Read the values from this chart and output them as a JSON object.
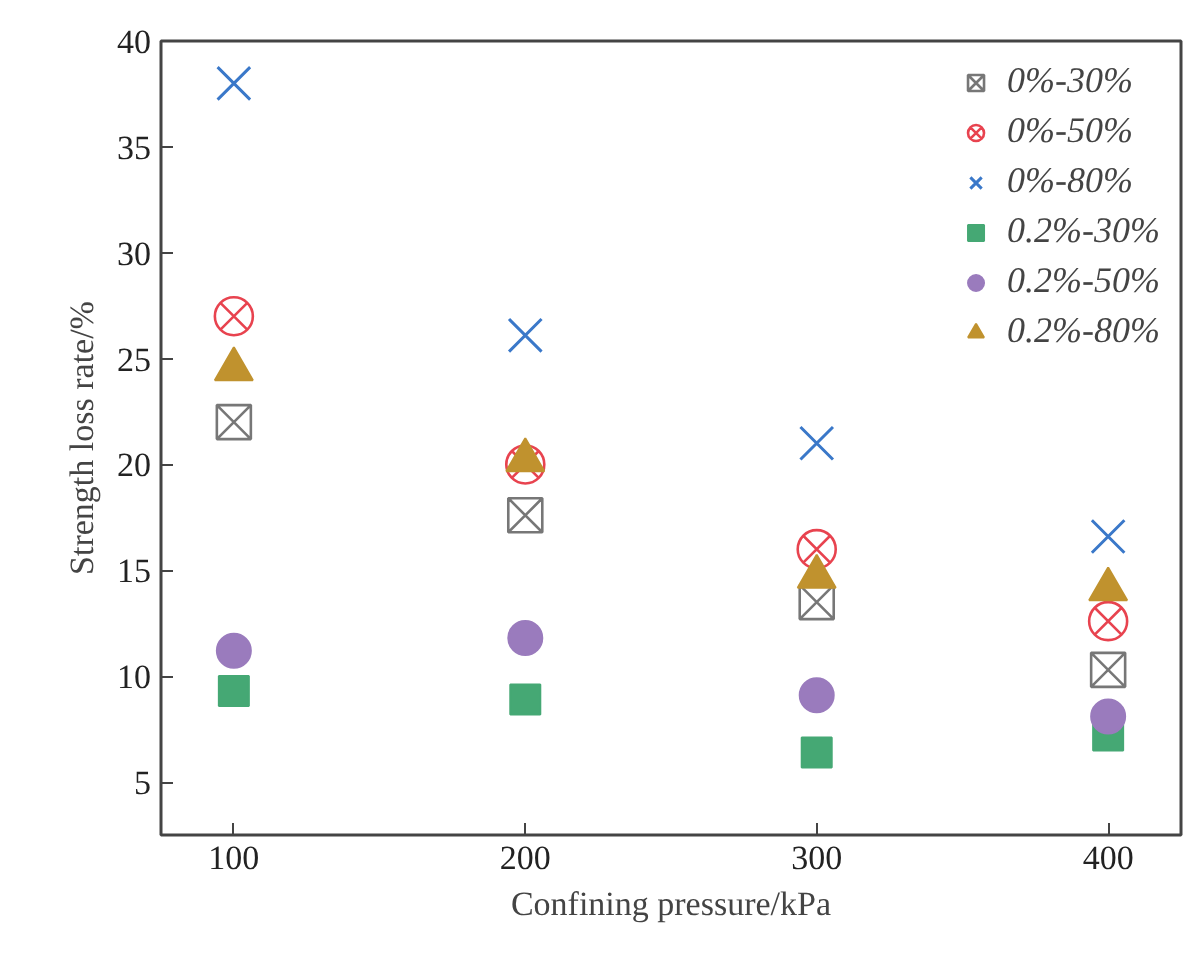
{
  "chart_data": {
    "type": "scatter",
    "xlabel": "Confining pressure/kPa",
    "ylabel": "Strength loss rate/%",
    "x": [
      100,
      200,
      300,
      400
    ],
    "xlim": [
      75,
      425
    ],
    "xticks": [
      100,
      200,
      300,
      400
    ],
    "ylim": [
      2.5,
      40
    ],
    "yticks": [
      5,
      10,
      15,
      20,
      25,
      30,
      35,
      40
    ],
    "grid": false,
    "legend": "top right",
    "series": [
      {
        "name": "0%-30%",
        "color": "#777777",
        "marker": "cross",
        "values": [
          22,
          17.6,
          13.5,
          10.3
        ]
      },
      {
        "name": "0%-50%",
        "color": "#e8434f",
        "marker": "cross",
        "values": [
          27,
          20,
          16,
          12.6
        ]
      },
      {
        "name": "0%-80%",
        "color": "#3a78c9",
        "marker": "cross",
        "values": [
          38,
          26.1,
          21,
          16.6
        ]
      },
      {
        "name": "0.2%-30%",
        "color": "#45a874",
        "marker": "square",
        "values": [
          9.3,
          8.9,
          6.4,
          7.2
        ]
      },
      {
        "name": "0.2%-50%",
        "color": "#9a7bbd",
        "marker": "circle",
        "values": [
          11.2,
          11.8,
          9.1,
          8.1
        ]
      },
      {
        "name": "0.2%-80%",
        "color": "#c0922e",
        "marker": "triangle",
        "values": [
          24.5,
          20.2,
          14.7,
          14.1
        ]
      }
    ]
  }
}
